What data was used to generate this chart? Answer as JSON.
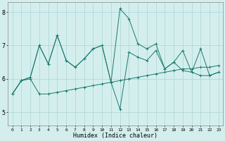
{
  "title": "",
  "xlabel": "Humidex (Indice chaleur)",
  "background_color": "#d4eeee",
  "line_color": "#1a7a6e",
  "grid_color": "#aad4d4",
  "xlim": [
    -0.5,
    23.5
  ],
  "ylim": [
    4.6,
    8.3
  ],
  "xticks": [
    0,
    1,
    2,
    3,
    4,
    5,
    6,
    7,
    8,
    9,
    10,
    11,
    12,
    13,
    14,
    15,
    16,
    17,
    18,
    19,
    20,
    21,
    22,
    23
  ],
  "yticks": [
    5,
    6,
    7,
    8
  ],
  "line1": [
    5.55,
    5.95,
    6.0,
    5.55,
    5.55,
    5.6,
    5.65,
    5.7,
    5.75,
    5.8,
    5.85,
    5.9,
    5.95,
    6.0,
    6.05,
    6.1,
    6.15,
    6.2,
    6.25,
    6.3,
    6.3,
    6.35,
    6.35,
    6.4
  ],
  "line2": [
    5.55,
    5.95,
    6.05,
    7.0,
    6.45,
    7.3,
    6.55,
    6.35,
    6.6,
    6.9,
    7.0,
    5.9,
    8.1,
    7.8,
    7.05,
    6.9,
    7.05,
    6.3,
    6.5,
    6.85,
    6.2,
    6.9,
    6.1,
    6.2
  ],
  "line3": [
    5.55,
    5.95,
    6.05,
    7.0,
    6.45,
    7.3,
    6.55,
    6.35,
    6.6,
    6.9,
    7.0,
    5.9,
    5.1,
    6.8,
    6.65,
    6.55,
    6.85,
    6.3,
    6.5,
    6.25,
    6.2,
    6.1,
    6.1,
    6.2
  ],
  "x": [
    0,
    1,
    2,
    3,
    4,
    5,
    6,
    7,
    8,
    9,
    10,
    11,
    12,
    13,
    14,
    15,
    16,
    17,
    18,
    19,
    20,
    21,
    22,
    23
  ]
}
